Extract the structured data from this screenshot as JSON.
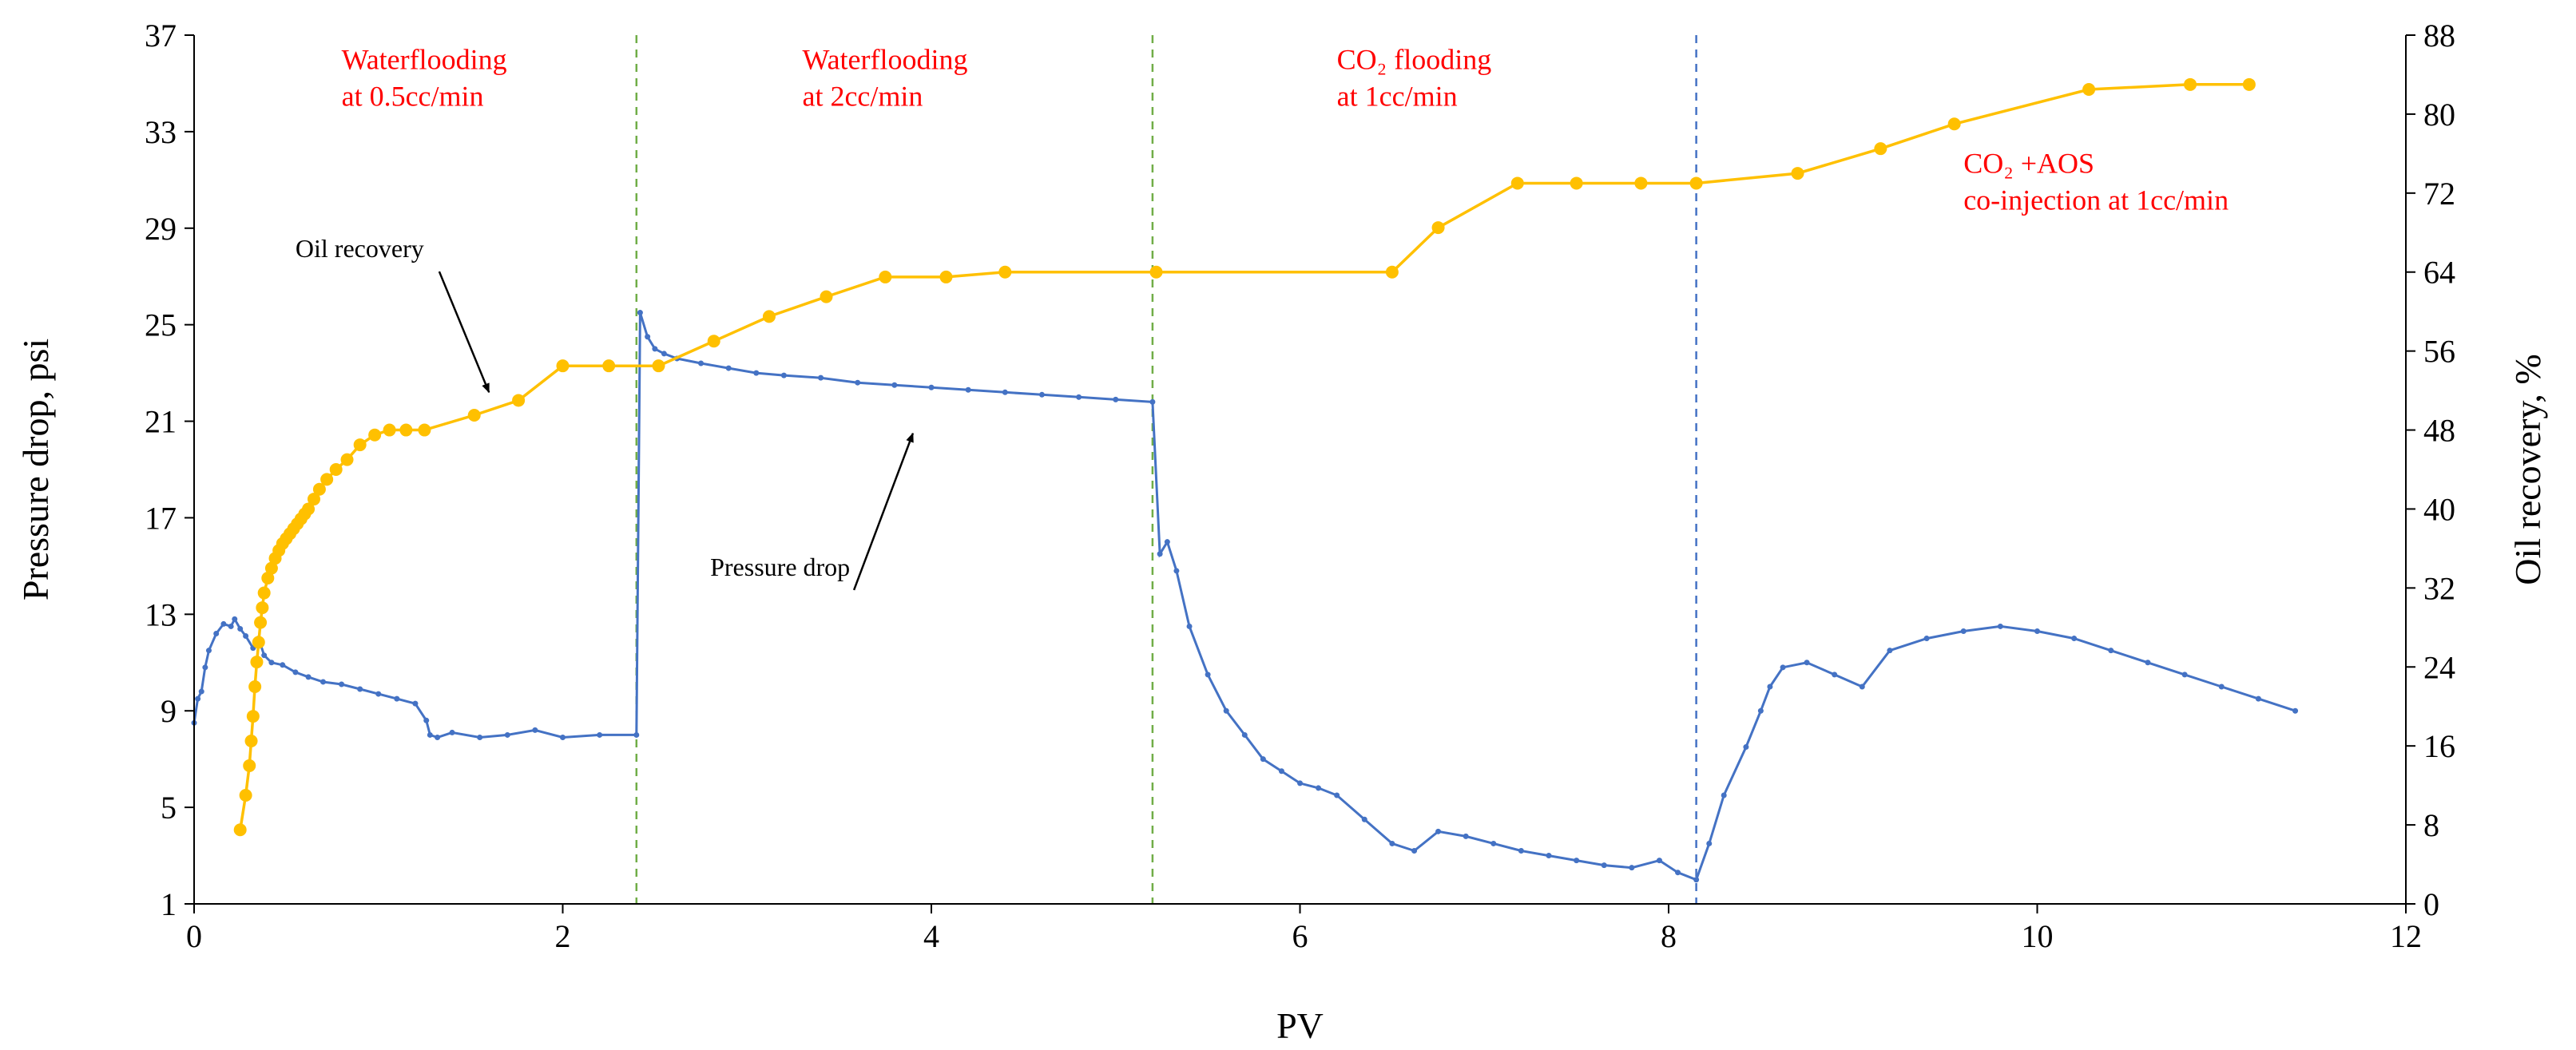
{
  "chart_data": {
    "type": "line",
    "title": "",
    "xlabel": "PV",
    "ylabel_left": "Pressure drop, psi",
    "ylabel_right": "Oil recovery, %",
    "xlim": [
      0,
      12
    ],
    "ylim_left": [
      1,
      37
    ],
    "ylim_right": [
      0,
      88
    ],
    "x_ticks": [
      0,
      2,
      4,
      6,
      8,
      10,
      12
    ],
    "y_left_ticks": [
      1,
      5,
      9,
      13,
      17,
      21,
      25,
      29,
      33,
      37
    ],
    "y_right_ticks": [
      0,
      8,
      16,
      24,
      32,
      40,
      48,
      56,
      64,
      72,
      80,
      88
    ],
    "grid": false,
    "colors": {
      "pressure": "#4472c4",
      "recovery": "#ffc000",
      "phase_divider": "#70ad47",
      "co_injection_divider": "#4472c4",
      "phase_text": "#ff0000"
    },
    "phase_dividers": [
      {
        "x": 2.4,
        "style": "green-dashed"
      },
      {
        "x": 5.2,
        "style": "green-dashed"
      },
      {
        "x": 8.15,
        "style": "blue-dashed"
      }
    ],
    "phase_labels": [
      {
        "lines": [
          "Waterflooding",
          "at 0.5cc/min"
        ],
        "x": 0.8,
        "y_left": 35.6
      },
      {
        "lines": [
          "Waterflooding",
          "at 2cc/min"
        ],
        "x": 3.3,
        "y_left": 35.6
      },
      {
        "lines": [
          "CO₂ flooding",
          "at 1cc/min"
        ],
        "x": 6.2,
        "y_left": 35.6
      },
      {
        "lines": [
          "CO₂ +AOS",
          "co-injection at 1cc/min"
        ],
        "x": 9.6,
        "y_left": 31.3
      }
    ],
    "annotations": [
      {
        "text": "Oil recovery",
        "x": 0.55,
        "y_left": 27.8,
        "arrow_to": [
          1.6,
          22.2
        ]
      },
      {
        "text": "Pressure drop",
        "x": 2.8,
        "y_left": 14.6,
        "arrow_to": [
          3.9,
          20.5
        ]
      }
    ],
    "series": [
      {
        "name": "Oil recovery",
        "axis": "right",
        "marker": "circle",
        "x": [
          0.25,
          0.28,
          0.3,
          0.31,
          0.32,
          0.33,
          0.34,
          0.35,
          0.36,
          0.37,
          0.38,
          0.4,
          0.42,
          0.44,
          0.46,
          0.48,
          0.5,
          0.52,
          0.54,
          0.56,
          0.58,
          0.6,
          0.62,
          0.65,
          0.68,
          0.72,
          0.77,
          0.83,
          0.9,
          0.98,
          1.06,
          1.15,
          1.25,
          1.52,
          1.76,
          2.0,
          2.25,
          2.52,
          2.82,
          3.12,
          3.43,
          3.75,
          4.08,
          4.4,
          5.22,
          6.5,
          6.75,
          7.18,
          7.5,
          7.85,
          8.15,
          8.7,
          9.15,
          9.55,
          10.28,
          10.83,
          11.15
        ],
        "values": [
          7.5,
          11,
          14,
          16.5,
          19,
          22,
          24.5,
          26.5,
          28.5,
          30,
          31.5,
          33,
          34,
          35,
          35.8,
          36.5,
          37,
          37.5,
          38,
          38.5,
          39,
          39.5,
          40,
          41,
          42,
          43,
          44,
          45,
          46.5,
          47.5,
          48,
          48,
          48,
          49.5,
          51,
          54.5,
          54.5,
          54.5,
          57,
          59.5,
          61.5,
          63.5,
          63.5,
          64,
          64,
          64,
          68.5,
          73,
          73,
          73,
          73,
          74,
          76.5,
          79,
          82.5,
          83,
          83
        ]
      },
      {
        "name": "Pressure drop",
        "axis": "left",
        "marker": "dot",
        "x": [
          0.0,
          0.02,
          0.04,
          0.06,
          0.08,
          0.12,
          0.16,
          0.2,
          0.22,
          0.25,
          0.28,
          0.32,
          0.35,
          0.38,
          0.42,
          0.48,
          0.55,
          0.62,
          0.7,
          0.8,
          0.9,
          1.0,
          1.1,
          1.2,
          1.26,
          1.28,
          1.32,
          1.4,
          1.55,
          1.7,
          1.85,
          2.0,
          2.2,
          2.4,
          2.42,
          2.46,
          2.5,
          2.55,
          2.62,
          2.75,
          2.9,
          3.05,
          3.2,
          3.4,
          3.6,
          3.8,
          4.0,
          4.2,
          4.4,
          4.6,
          4.8,
          5.0,
          5.2,
          5.24,
          5.28,
          5.33,
          5.4,
          5.5,
          5.6,
          5.7,
          5.8,
          5.9,
          6.0,
          6.1,
          6.2,
          6.35,
          6.5,
          6.62,
          6.75,
          6.9,
          7.05,
          7.2,
          7.35,
          7.5,
          7.65,
          7.8,
          7.95,
          8.05,
          8.15,
          8.22,
          8.3,
          8.42,
          8.5,
          8.55,
          8.62,
          8.75,
          8.9,
          9.05,
          9.2,
          9.4,
          9.6,
          9.8,
          10.0,
          10.2,
          10.4,
          10.6,
          10.8,
          11.0,
          11.2,
          11.4
        ],
        "values": [
          8.5,
          9.5,
          9.8,
          10.8,
          11.5,
          12.2,
          12.6,
          12.5,
          12.8,
          12.4,
          12.1,
          11.6,
          12.0,
          11.3,
          11.0,
          10.9,
          10.6,
          10.4,
          10.2,
          10.1,
          9.9,
          9.7,
          9.5,
          9.3,
          8.6,
          8.0,
          7.9,
          8.1,
          7.9,
          8.0,
          8.2,
          7.9,
          8.0,
          8.0,
          25.5,
          24.5,
          24.0,
          23.8,
          23.6,
          23.4,
          23.2,
          23.0,
          22.9,
          22.8,
          22.6,
          22.5,
          22.4,
          22.3,
          22.2,
          22.1,
          22.0,
          21.9,
          21.8,
          15.5,
          16.0,
          14.8,
          12.5,
          10.5,
          9.0,
          8.0,
          7.0,
          6.5,
          6.0,
          5.8,
          5.5,
          4.5,
          3.5,
          3.2,
          4.0,
          3.8,
          3.5,
          3.2,
          3.0,
          2.8,
          2.6,
          2.5,
          2.8,
          2.3,
          2.0,
          3.5,
          5.5,
          7.5,
          9.0,
          10.0,
          10.8,
          11.0,
          10.5,
          10.0,
          11.5,
          12.0,
          12.3,
          12.5,
          12.3,
          12.0,
          11.5,
          11.0,
          10.5,
          10.0,
          9.5,
          9.0
        ]
      }
    ]
  }
}
